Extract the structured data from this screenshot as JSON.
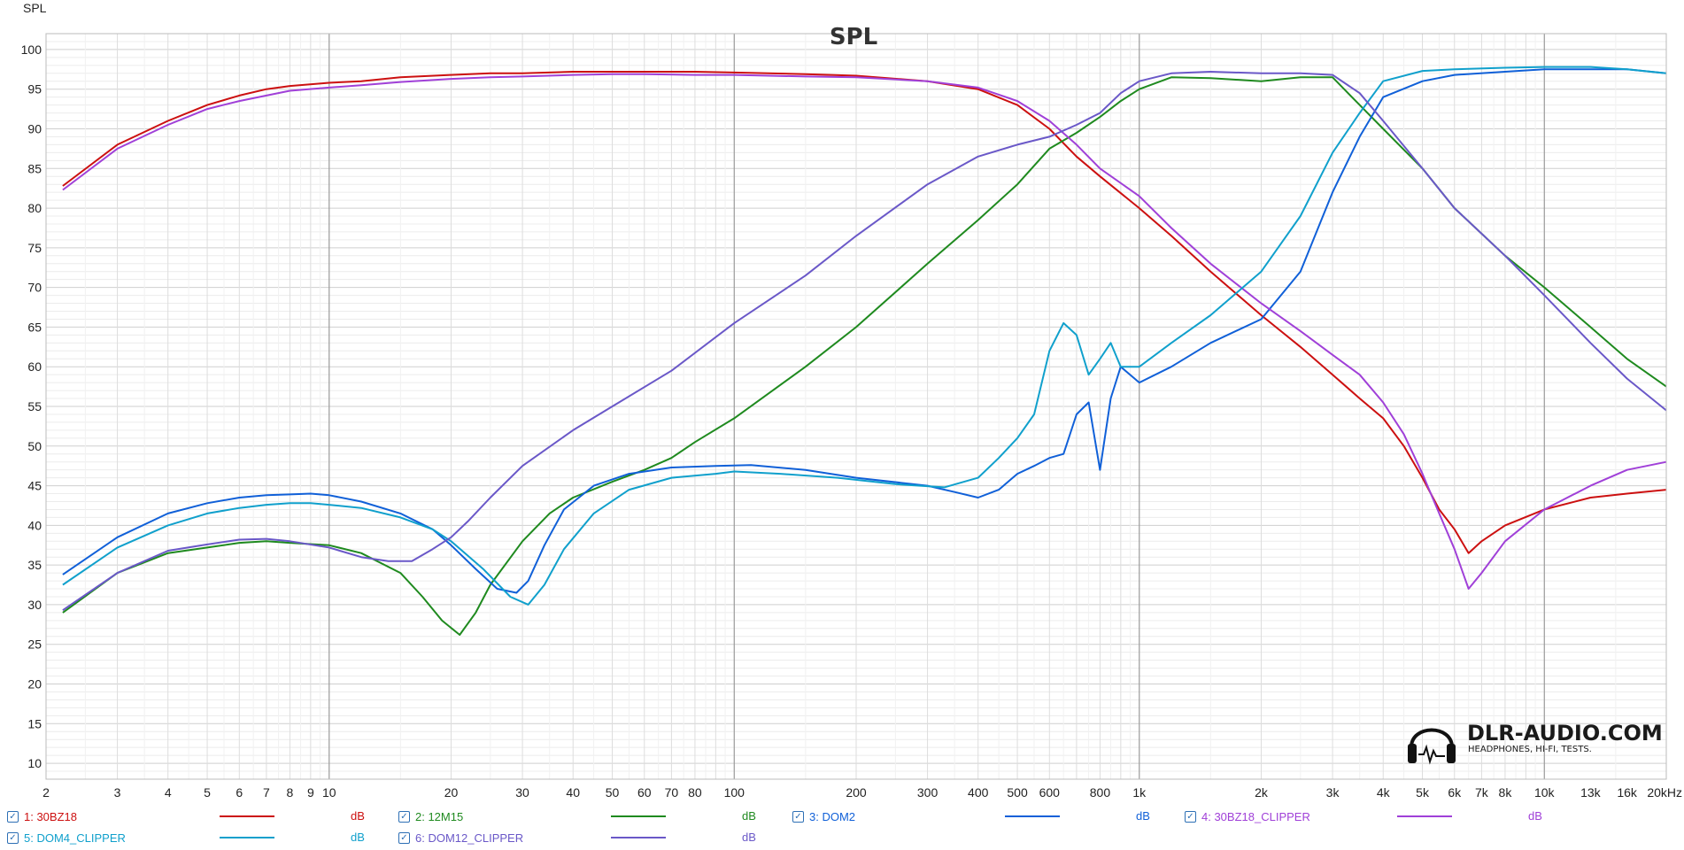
{
  "chart_data": {
    "type": "line",
    "title": "SPL",
    "ylabel": "SPL",
    "x_scale": "log",
    "xlim": [
      2,
      20000
    ],
    "ylim": [
      8,
      102
    ],
    "y_ticks": [
      10,
      15,
      20,
      25,
      30,
      35,
      40,
      45,
      50,
      55,
      60,
      65,
      70,
      75,
      80,
      85,
      90,
      95,
      100
    ],
    "x_ticks": [
      {
        "v": 2,
        "label": "2",
        "major": false
      },
      {
        "v": 3,
        "label": "3",
        "major": false
      },
      {
        "v": 4,
        "label": "4",
        "major": false
      },
      {
        "v": 5,
        "label": "5",
        "major": false
      },
      {
        "v": 6,
        "label": "6",
        "major": false
      },
      {
        "v": 7,
        "label": "7",
        "major": false
      },
      {
        "v": 8,
        "label": "8",
        "major": false
      },
      {
        "v": 9,
        "label": "9",
        "major": false
      },
      {
        "v": 10,
        "label": "10",
        "major": true
      },
      {
        "v": 20,
        "label": "20",
        "major": false
      },
      {
        "v": 30,
        "label": "30",
        "major": false
      },
      {
        "v": 40,
        "label": "40",
        "major": false
      },
      {
        "v": 50,
        "label": "50",
        "major": false
      },
      {
        "v": 60,
        "label": "60",
        "major": false
      },
      {
        "v": 70,
        "label": "70",
        "major": false
      },
      {
        "v": 80,
        "label": "80",
        "major": false
      },
      {
        "v": 100,
        "label": "100",
        "major": true
      },
      {
        "v": 200,
        "label": "200",
        "major": false
      },
      {
        "v": 300,
        "label": "300",
        "major": false
      },
      {
        "v": 400,
        "label": "400",
        "major": false
      },
      {
        "v": 500,
        "label": "500",
        "major": false
      },
      {
        "v": 600,
        "label": "600",
        "major": false
      },
      {
        "v": 800,
        "label": "800",
        "major": false
      },
      {
        "v": 1000,
        "label": "1k",
        "major": true
      },
      {
        "v": 2000,
        "label": "2k",
        "major": false
      },
      {
        "v": 3000,
        "label": "3k",
        "major": false
      },
      {
        "v": 4000,
        "label": "4k",
        "major": false
      },
      {
        "v": 5000,
        "label": "5k",
        "major": false
      },
      {
        "v": 6000,
        "label": "6k",
        "major": false
      },
      {
        "v": 7000,
        "label": "7k",
        "major": false
      },
      {
        "v": 8000,
        "label": "8k",
        "major": false
      },
      {
        "v": 10000,
        "label": "10k",
        "major": true
      },
      {
        "v": 13000,
        "label": "13k",
        "major": false,
        "muted": true
      },
      {
        "v": 16000,
        "label": "16k",
        "major": false,
        "muted": true
      },
      {
        "v": 20000,
        "label": "20kHz",
        "major": false
      }
    ],
    "grid": true,
    "legend_position": "bottom",
    "series": [
      {
        "name": "1: 30BZ18",
        "unit": "dB",
        "color": "#cc1010",
        "x": [
          2.2,
          3,
          4,
          5,
          6,
          7,
          8,
          10,
          12,
          15,
          20,
          25,
          30,
          40,
          50,
          60,
          80,
          100,
          150,
          200,
          300,
          400,
          500,
          600,
          700,
          800,
          1000,
          1200,
          1500,
          2000,
          2500,
          3000,
          3500,
          4000,
          4500,
          5000,
          5500,
          6000,
          6500,
          7000,
          8000,
          10000,
          13000,
          16000,
          20000
        ],
        "y": [
          82.8,
          88,
          91,
          93,
          94.2,
          95,
          95.4,
          95.8,
          96,
          96.5,
          96.8,
          97,
          97,
          97.2,
          97.2,
          97.2,
          97.2,
          97.1,
          96.9,
          96.7,
          96,
          95,
          93,
          90,
          86.5,
          84,
          80,
          76.5,
          72,
          66.5,
          62.5,
          59,
          56,
          53.5,
          50,
          46,
          42,
          39.5,
          36.5,
          38,
          40,
          42,
          43.5,
          44,
          44.5
        ]
      },
      {
        "name": "2: 12M15",
        "unit": "dB",
        "color": "#1f8a1f",
        "x": [
          2.2,
          3,
          4,
          5,
          6,
          7,
          8,
          10,
          12,
          15,
          17,
          19,
          21,
          23,
          25,
          30,
          35,
          40,
          50,
          60,
          70,
          80,
          100,
          150,
          200,
          300,
          400,
          500,
          600,
          700,
          800,
          900,
          1000,
          1200,
          1500,
          2000,
          2500,
          3000,
          3500,
          4000,
          5000,
          6000,
          8000,
          10000,
          13000,
          16000,
          20000
        ],
        "y": [
          29,
          34,
          36.5,
          37.2,
          37.8,
          38,
          37.8,
          37.5,
          36.5,
          34,
          31,
          28,
          26.2,
          29,
          32.5,
          38,
          41.5,
          43.5,
          45.5,
          47,
          48.5,
          50.5,
          53.5,
          60,
          65,
          73,
          78.5,
          83,
          87.5,
          89.5,
          91.5,
          93.5,
          95,
          96.5,
          96.4,
          96,
          96.5,
          96.5,
          93,
          90,
          85,
          80,
          74,
          70,
          65,
          61,
          57.5
        ]
      },
      {
        "name": "3: DOM2",
        "unit": "dB",
        "color": "#1060d8",
        "x": [
          2.2,
          3,
          4,
          5,
          6,
          7,
          8,
          9,
          10,
          12,
          15,
          18,
          20,
          23,
          26,
          29,
          31,
          34,
          38,
          45,
          55,
          70,
          90,
          110,
          150,
          200,
          300,
          350,
          400,
          450,
          500,
          550,
          600,
          650,
          700,
          750,
          800,
          850,
          900,
          1000,
          1200,
          1500,
          2000,
          2500,
          3000,
          3500,
          4000,
          5000,
          6000,
          8000,
          10000,
          13000,
          16000,
          20000
        ],
        "y": [
          33.8,
          38.5,
          41.5,
          42.8,
          43.5,
          43.8,
          43.9,
          44,
          43.8,
          43,
          41.5,
          39.5,
          37.5,
          34.5,
          32,
          31.5,
          33,
          37.5,
          42,
          45,
          46.5,
          47.3,
          47.5,
          47.6,
          47,
          46,
          45,
          44.2,
          43.5,
          44.5,
          46.5,
          47.5,
          48.5,
          49,
          54,
          55.5,
          47,
          56,
          60,
          58,
          60,
          63,
          66,
          72,
          82,
          89,
          94,
          96,
          96.8,
          97.2,
          97.5,
          97.5,
          97.5,
          97
        ]
      },
      {
        "name": "4: 30BZ18_CLIPPER",
        "unit": "dB",
        "color": "#a040d8",
        "x": [
          2.2,
          3,
          4,
          5,
          6,
          7,
          8,
          10,
          12,
          15,
          20,
          25,
          30,
          40,
          50,
          60,
          80,
          100,
          150,
          200,
          300,
          400,
          500,
          600,
          700,
          800,
          1000,
          1200,
          1500,
          2000,
          2500,
          3000,
          3500,
          4000,
          4500,
          5000,
          5500,
          6000,
          6500,
          7000,
          8000,
          10000,
          13000,
          16000,
          20000
        ],
        "y": [
          82.3,
          87.5,
          90.5,
          92.5,
          93.5,
          94.2,
          94.8,
          95.2,
          95.5,
          95.9,
          96.3,
          96.5,
          96.6,
          96.8,
          96.9,
          96.9,
          96.8,
          96.8,
          96.6,
          96.5,
          96,
          95.2,
          93.5,
          91,
          88,
          85,
          81.5,
          77.5,
          73,
          68,
          64.5,
          61.5,
          59,
          55.5,
          51.5,
          46.5,
          41.5,
          37,
          32,
          34,
          38,
          42,
          45,
          47,
          48
        ]
      },
      {
        "name": "5: DOM4_CLIPPER",
        "unit": "dB",
        "color": "#10a0cc",
        "x": [
          2.2,
          3,
          4,
          5,
          6,
          7,
          8,
          9,
          10,
          12,
          15,
          18,
          20,
          24,
          28,
          31,
          34,
          38,
          45,
          55,
          70,
          90,
          100,
          130,
          180,
          250,
          330,
          400,
          450,
          500,
          550,
          600,
          650,
          700,
          750,
          800,
          850,
          900,
          1000,
          1200,
          1500,
          2000,
          2500,
          3000,
          3500,
          4000,
          5000,
          6000,
          8000,
          10000,
          13000,
          16000,
          20000
        ],
        "y": [
          32.5,
          37.2,
          40,
          41.5,
          42.2,
          42.6,
          42.8,
          42.8,
          42.6,
          42.2,
          41,
          39.5,
          38,
          34.5,
          31,
          30,
          32.5,
          37,
          41.5,
          44.5,
          46,
          46.5,
          46.8,
          46.5,
          46,
          45.2,
          44.8,
          46,
          48.5,
          51,
          54,
          62,
          65.5,
          64,
          59,
          61,
          63,
          60,
          60,
          63,
          66.5,
          72,
          79,
          87,
          92,
          96,
          97.3,
          97.5,
          97.7,
          97.8,
          97.8,
          97.5,
          97
        ]
      },
      {
        "name": "6: DOM12_CLIPPER",
        "unit": "dB",
        "color": "#6a58c8",
        "x": [
          2.2,
          3,
          4,
          5,
          6,
          7,
          8,
          10,
          12,
          14,
          16,
          18,
          20,
          22,
          25,
          30,
          40,
          50,
          70,
          100,
          150,
          200,
          300,
          400,
          500,
          600,
          700,
          800,
          900,
          1000,
          1200,
          1500,
          2000,
          2500,
          3000,
          3500,
          4000,
          5000,
          6000,
          8000,
          10000,
          13000,
          16000,
          20000
        ],
        "y": [
          29.3,
          34,
          36.8,
          37.6,
          38.2,
          38.3,
          38,
          37.2,
          36,
          35.5,
          35.5,
          37,
          38.5,
          40.5,
          43.5,
          47.5,
          52,
          55,
          59.5,
          65.5,
          71.5,
          76.5,
          83,
          86.5,
          88,
          89,
          90.5,
          92,
          94.5,
          96,
          97,
          97.2,
          97,
          97,
          96.8,
          94.5,
          91,
          85,
          80,
          74,
          69,
          63,
          58.5,
          54.5
        ]
      }
    ],
    "watermark": {
      "main": "DLR-AUDIO.COM",
      "sub": "HEADPHONES, HI-FI, TESTS."
    }
  }
}
